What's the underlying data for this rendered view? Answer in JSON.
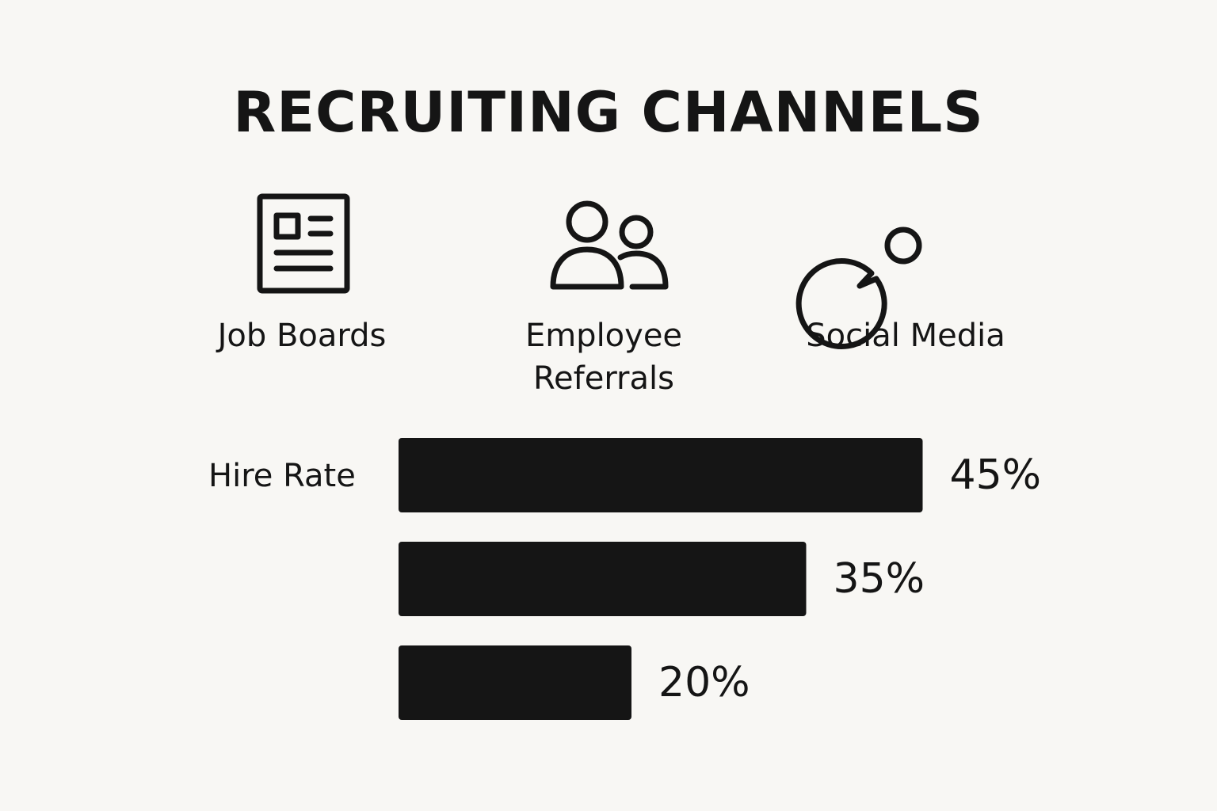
{
  "chart_data": {
    "type": "bar",
    "title": "RECRUITING CHANNELS",
    "categories": [
      "Job Boards",
      "Employee Referrals",
      "Social Media"
    ],
    "series": [
      {
        "name": "Hire Rate",
        "color": "#151515",
        "values": [
          45,
          35,
          20
        ],
        "value_labels": [
          "45%",
          "35%",
          "20%"
        ]
      }
    ]
  }
}
